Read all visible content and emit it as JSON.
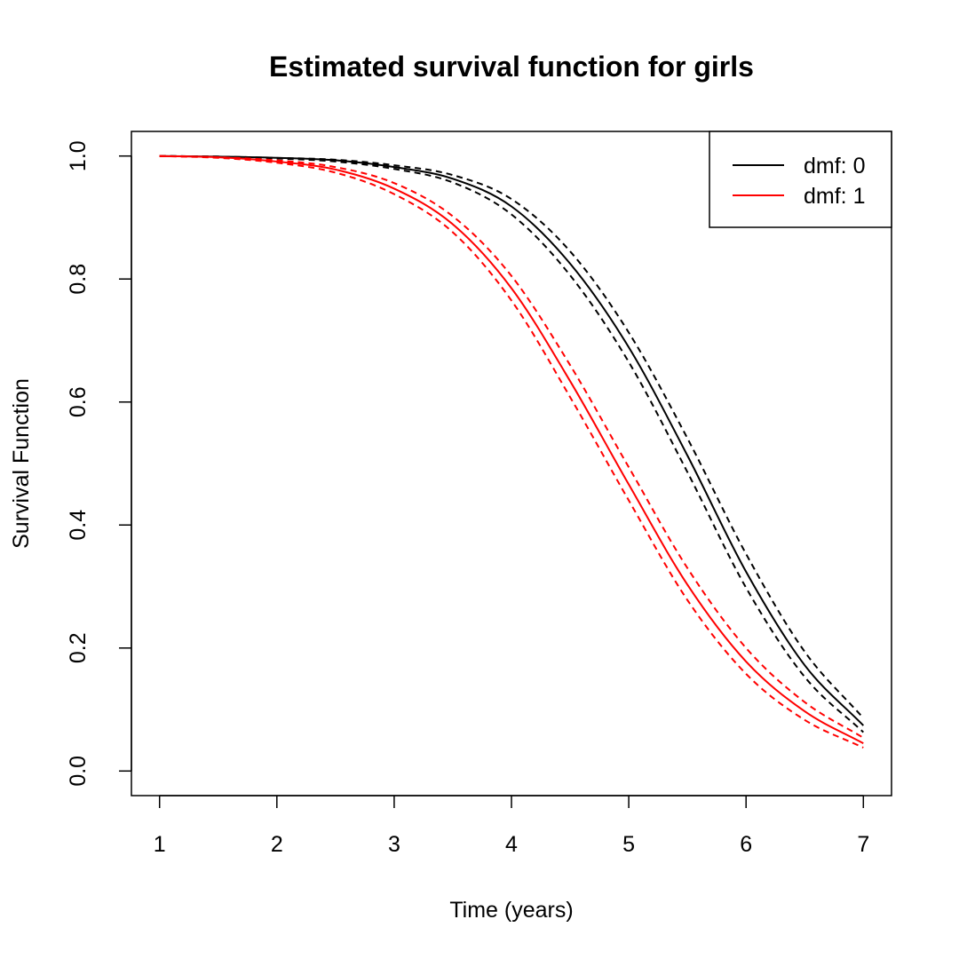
{
  "chart_data": {
    "type": "line",
    "title": "Estimated survival function for girls",
    "xlabel": "Time (years)",
    "ylabel": "Survival Function",
    "xlim": [
      0.76,
      7.24
    ],
    "ylim": [
      -0.04,
      1.04
    ],
    "x_ticks": [
      1,
      2,
      3,
      4,
      5,
      6,
      7
    ],
    "y_ticks": [
      0,
      0.2,
      0.4,
      0.6,
      0.8,
      1.0
    ],
    "x_tick_labels": [
      "1",
      "2",
      "3",
      "4",
      "5",
      "6",
      "7"
    ],
    "y_tick_labels": [
      "0.0",
      "0.2",
      "0.4",
      "0.6",
      "0.8",
      "1.0"
    ],
    "legend_position": "top-right",
    "legend": [
      {
        "label": "dmf: 0",
        "color": "#000000"
      },
      {
        "label": "dmf: 1",
        "color": "#ff0000"
      }
    ],
    "x": [
      1,
      1.5,
      2,
      2.5,
      3,
      3.5,
      4,
      4.5,
      5,
      5.5,
      6,
      6.5,
      7
    ],
    "series": [
      {
        "name": "dmf: 0",
        "color": "#000000",
        "dash": "solid",
        "values": [
          1.0,
          0.999,
          0.997,
          0.993,
          0.982,
          0.963,
          0.918,
          0.825,
          0.689,
          0.513,
          0.324,
          0.172,
          0.074
        ]
      },
      {
        "name": "",
        "color": "#000000",
        "dash": "dashed",
        "values": [
          1.0,
          0.999,
          0.997,
          0.994,
          0.985,
          0.969,
          0.93,
          0.845,
          0.713,
          0.541,
          0.353,
          0.194,
          0.086
        ]
      },
      {
        "name": "",
        "color": "#000000",
        "dash": "dashed",
        "values": [
          1.0,
          0.999,
          0.996,
          0.991,
          0.979,
          0.957,
          0.905,
          0.806,
          0.665,
          0.486,
          0.298,
          0.153,
          0.063
        ]
      },
      {
        "name": "dmf: 1",
        "color": "#ff0000",
        "dash": "solid",
        "values": [
          1.0,
          0.998,
          0.991,
          0.978,
          0.947,
          0.889,
          0.785,
          0.634,
          0.466,
          0.303,
          0.178,
          0.097,
          0.045
        ]
      },
      {
        "name": "",
        "color": "#ff0000",
        "dash": "dashed",
        "values": [
          1.0,
          0.998,
          0.993,
          0.982,
          0.956,
          0.902,
          0.805,
          0.66,
          0.494,
          0.33,
          0.2,
          0.112,
          0.054
        ]
      },
      {
        "name": "",
        "color": "#ff0000",
        "dash": "dashed",
        "values": [
          1.0,
          0.997,
          0.989,
          0.973,
          0.938,
          0.876,
          0.765,
          0.608,
          0.44,
          0.278,
          0.158,
          0.083,
          0.038
        ]
      }
    ]
  }
}
